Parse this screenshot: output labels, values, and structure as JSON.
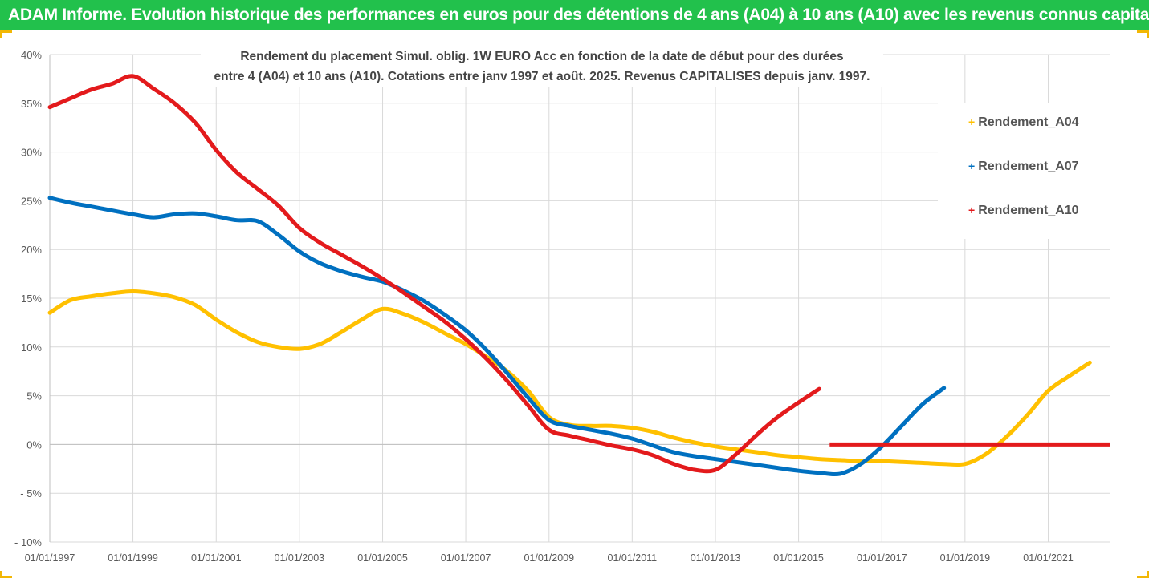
{
  "header": {
    "title": "ADAM Informe. Evolution historique des performances en euros pour des détentions de 4 ans (A04) à 10 ans (A10) avec les revenus connus capitalisés"
  },
  "chart_data": {
    "type": "line",
    "title_line1": "Rendement du placement Simul. oblig. 1W EURO Acc en fonction de la date de début pour des durées",
    "title_line2": "entre 4 (A04) et 10 ans (A10). Cotations entre janv 1997 et août. 2025. Revenus CAPITALISES depuis janv. 1997.",
    "xlim": [
      "1997-01-01",
      "2022-07-01"
    ],
    "ylim": [
      -10,
      40
    ],
    "y_ticks": [
      -10,
      -5,
      0,
      5,
      10,
      15,
      20,
      25,
      30,
      35,
      40
    ],
    "y_tick_labels": [
      "- 10%",
      "- 5%",
      "0%",
      "5%",
      "10%",
      "15%",
      "20%",
      "25%",
      "30%",
      "35%",
      "40%"
    ],
    "x_ticks": [
      "1997-01-01",
      "1999-01-01",
      "2001-01-01",
      "2003-01-01",
      "2005-01-01",
      "2007-01-01",
      "2009-01-01",
      "2011-01-01",
      "2013-01-01",
      "2015-01-01",
      "2017-01-01",
      "2019-01-01",
      "2021-01-01"
    ],
    "x_tick_labels": [
      "01/01/1997",
      "01/01/1999",
      "01/01/2001",
      "01/01/2003",
      "01/01/2005",
      "01/01/2007",
      "01/01/2009",
      "01/01/2011",
      "01/01/2013",
      "01/01/2015",
      "01/01/2017",
      "01/01/2019",
      "01/01/2021"
    ],
    "grid": true,
    "legend_position": "right",
    "series": [
      {
        "name": "Rendement_A04",
        "color": "#ffc000",
        "x": [
          "1997-01-01",
          "1997-07-01",
          "1998-01-01",
          "1998-07-01",
          "1999-01-01",
          "1999-07-01",
          "2000-01-01",
          "2000-07-01",
          "2001-01-01",
          "2001-07-01",
          "2002-01-01",
          "2002-07-01",
          "2003-01-01",
          "2003-07-01",
          "2004-01-01",
          "2004-07-01",
          "2005-01-01",
          "2005-07-01",
          "2006-01-01",
          "2006-07-01",
          "2007-01-01",
          "2007-07-01",
          "2008-01-01",
          "2008-07-01",
          "2009-01-01",
          "2009-07-01",
          "2010-01-01",
          "2010-07-01",
          "2011-01-01",
          "2011-07-01",
          "2012-01-01",
          "2012-07-01",
          "2013-01-01",
          "2013-07-01",
          "2014-01-01",
          "2014-07-01",
          "2015-01-01",
          "2015-07-01",
          "2016-01-01",
          "2016-07-01",
          "2017-01-01",
          "2017-07-01",
          "2018-01-01",
          "2018-07-01",
          "2019-01-01",
          "2019-07-01",
          "2020-01-01",
          "2020-07-01",
          "2021-01-01",
          "2021-07-01",
          "2022-01-01"
        ],
        "values": [
          13.5,
          14.8,
          15.2,
          15.5,
          15.7,
          15.5,
          15.1,
          14.3,
          12.8,
          11.5,
          10.5,
          10.0,
          9.8,
          10.3,
          11.5,
          12.8,
          13.9,
          13.4,
          12.5,
          11.4,
          10.3,
          9.0,
          7.5,
          5.5,
          2.8,
          2.0,
          1.9,
          1.9,
          1.7,
          1.3,
          0.7,
          0.2,
          -0.2,
          -0.5,
          -0.8,
          -1.1,
          -1.3,
          -1.5,
          -1.6,
          -1.7,
          -1.7,
          -1.8,
          -1.9,
          -2.0,
          -2.0,
          -1.0,
          0.8,
          3.0,
          5.5,
          7.0,
          8.4
        ]
      },
      {
        "name": "Rendement_A07",
        "color": "#0070c0",
        "x": [
          "1997-01-01",
          "1997-07-01",
          "1998-01-01",
          "1998-07-01",
          "1999-01-01",
          "1999-07-01",
          "2000-01-01",
          "2000-07-01",
          "2001-01-01",
          "2001-07-01",
          "2002-01-01",
          "2002-07-01",
          "2003-01-01",
          "2003-07-01",
          "2004-01-01",
          "2004-07-01",
          "2005-01-01",
          "2005-07-01",
          "2006-01-01",
          "2006-07-01",
          "2007-01-01",
          "2007-07-01",
          "2008-01-01",
          "2008-07-01",
          "2009-01-01",
          "2009-07-01",
          "2010-01-01",
          "2010-07-01",
          "2011-01-01",
          "2011-07-01",
          "2012-01-01",
          "2012-07-01",
          "2013-01-01",
          "2013-07-01",
          "2014-01-01",
          "2014-07-01",
          "2015-01-01",
          "2015-07-01",
          "2016-01-01",
          "2016-07-01",
          "2017-01-01",
          "2017-07-01",
          "2018-01-01",
          "2018-07-01"
        ],
        "values": [
          25.3,
          24.8,
          24.4,
          24.0,
          23.6,
          23.3,
          23.6,
          23.7,
          23.4,
          23.0,
          22.9,
          21.5,
          19.8,
          18.6,
          17.8,
          17.2,
          16.7,
          15.8,
          14.7,
          13.3,
          11.7,
          9.7,
          7.3,
          4.8,
          2.5,
          1.9,
          1.5,
          1.1,
          0.6,
          -0.1,
          -0.8,
          -1.2,
          -1.5,
          -1.8,
          -2.1,
          -2.4,
          -2.7,
          -2.9,
          -3.0,
          -2.0,
          -0.2,
          2.0,
          4.2,
          5.8
        ]
      },
      {
        "name": "Rendement_A10",
        "color": "#e31a1c",
        "x": [
          "1997-01-01",
          "1997-07-01",
          "1998-01-01",
          "1998-07-01",
          "1999-01-01",
          "1999-07-01",
          "2000-01-01",
          "2000-07-01",
          "2001-01-01",
          "2001-07-01",
          "2002-01-01",
          "2002-07-01",
          "2003-01-01",
          "2003-07-01",
          "2004-01-01",
          "2004-07-01",
          "2005-01-01",
          "2005-07-01",
          "2006-01-01",
          "2006-07-01",
          "2007-01-01",
          "2007-07-01",
          "2008-01-01",
          "2008-07-01",
          "2009-01-01",
          "2009-07-01",
          "2010-01-01",
          "2010-07-01",
          "2011-01-01",
          "2011-07-01",
          "2012-01-01",
          "2012-07-01",
          "2013-01-01",
          "2013-07-01",
          "2014-01-01",
          "2014-07-01",
          "2015-01-01",
          "2015-07-01"
        ],
        "values": [
          34.6,
          35.5,
          36.4,
          37.0,
          37.8,
          36.5,
          35.0,
          33.0,
          30.2,
          27.9,
          26.2,
          24.5,
          22.2,
          20.7,
          19.5,
          18.3,
          17.0,
          15.6,
          14.1,
          12.6,
          10.8,
          8.8,
          6.5,
          4.0,
          1.5,
          0.9,
          0.4,
          -0.1,
          -0.5,
          -1.1,
          -2.0,
          -2.6,
          -2.6,
          -1.0,
          1.0,
          2.8,
          4.3,
          5.7
        ]
      }
    ],
    "overlay": {
      "color": "#e31a1c",
      "x_start": "2015-10-01",
      "x_end": "2022-07-01",
      "value": 0
    }
  }
}
